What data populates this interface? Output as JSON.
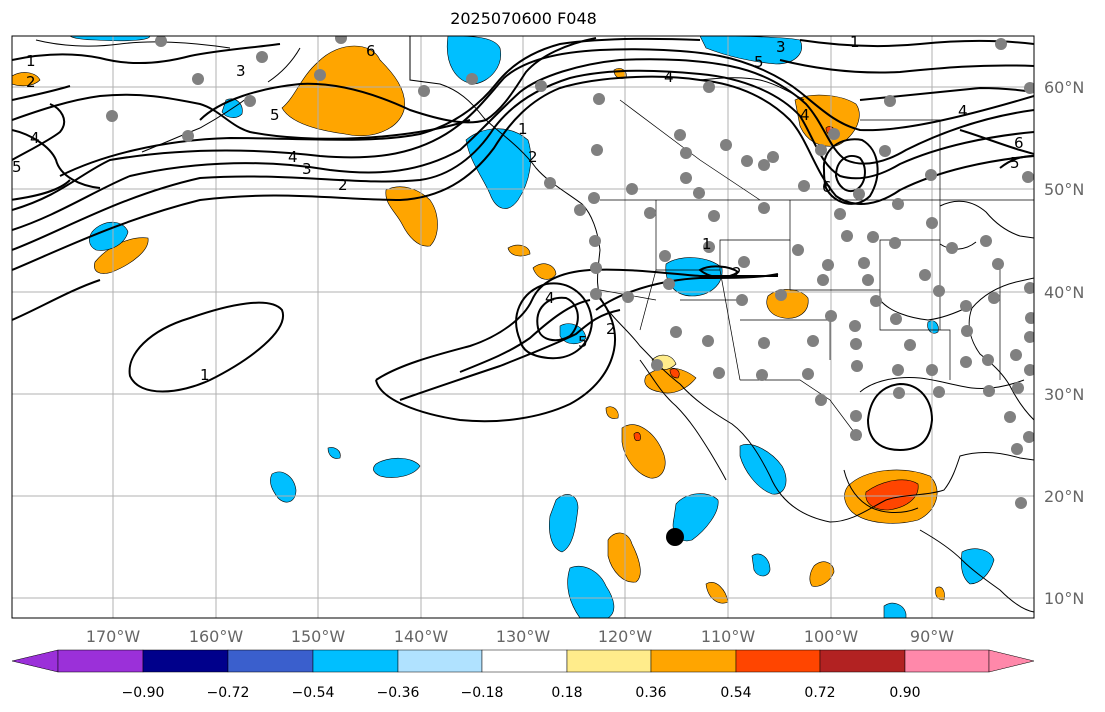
{
  "title": "2025070600 F048",
  "longitude_labels": [
    "170°W",
    "160°W",
    "150°W",
    "140°W",
    "130°W",
    "120°W",
    "110°W",
    "100°W",
    "90°W"
  ],
  "latitude_labels": [
    "60°N",
    "50°N",
    "40°N",
    "30°N",
    "20°N",
    "10°N"
  ],
  "colorbar": {
    "tick_labels": [
      "−0.90",
      "−0.72",
      "−0.54",
      "−0.36",
      "−0.18",
      "0.18",
      "0.36",
      "0.54",
      "0.72",
      "0.90"
    ],
    "colors": [
      "#9b30d9",
      "#00008b",
      "#3a5fcd",
      "#00bfff",
      "#b0e2ff",
      "#ffffff",
      "#ffec8b",
      "#ffa500",
      "#ff4500",
      "#b22222",
      "#ff88aa"
    ]
  },
  "contour_labels": [
    "1",
    "2",
    "3",
    "4",
    "5",
    "6",
    "4",
    "3",
    "2",
    "1",
    "2",
    "4",
    "5",
    "1",
    "6",
    "4",
    "5",
    "6",
    "4",
    "1",
    "2",
    "4",
    "5",
    "1",
    "2",
    "3",
    "5"
  ],
  "colors": {
    "grid": "#b0b0b0",
    "coast": "#000000",
    "station": "#808080",
    "marker": "#000000"
  }
}
